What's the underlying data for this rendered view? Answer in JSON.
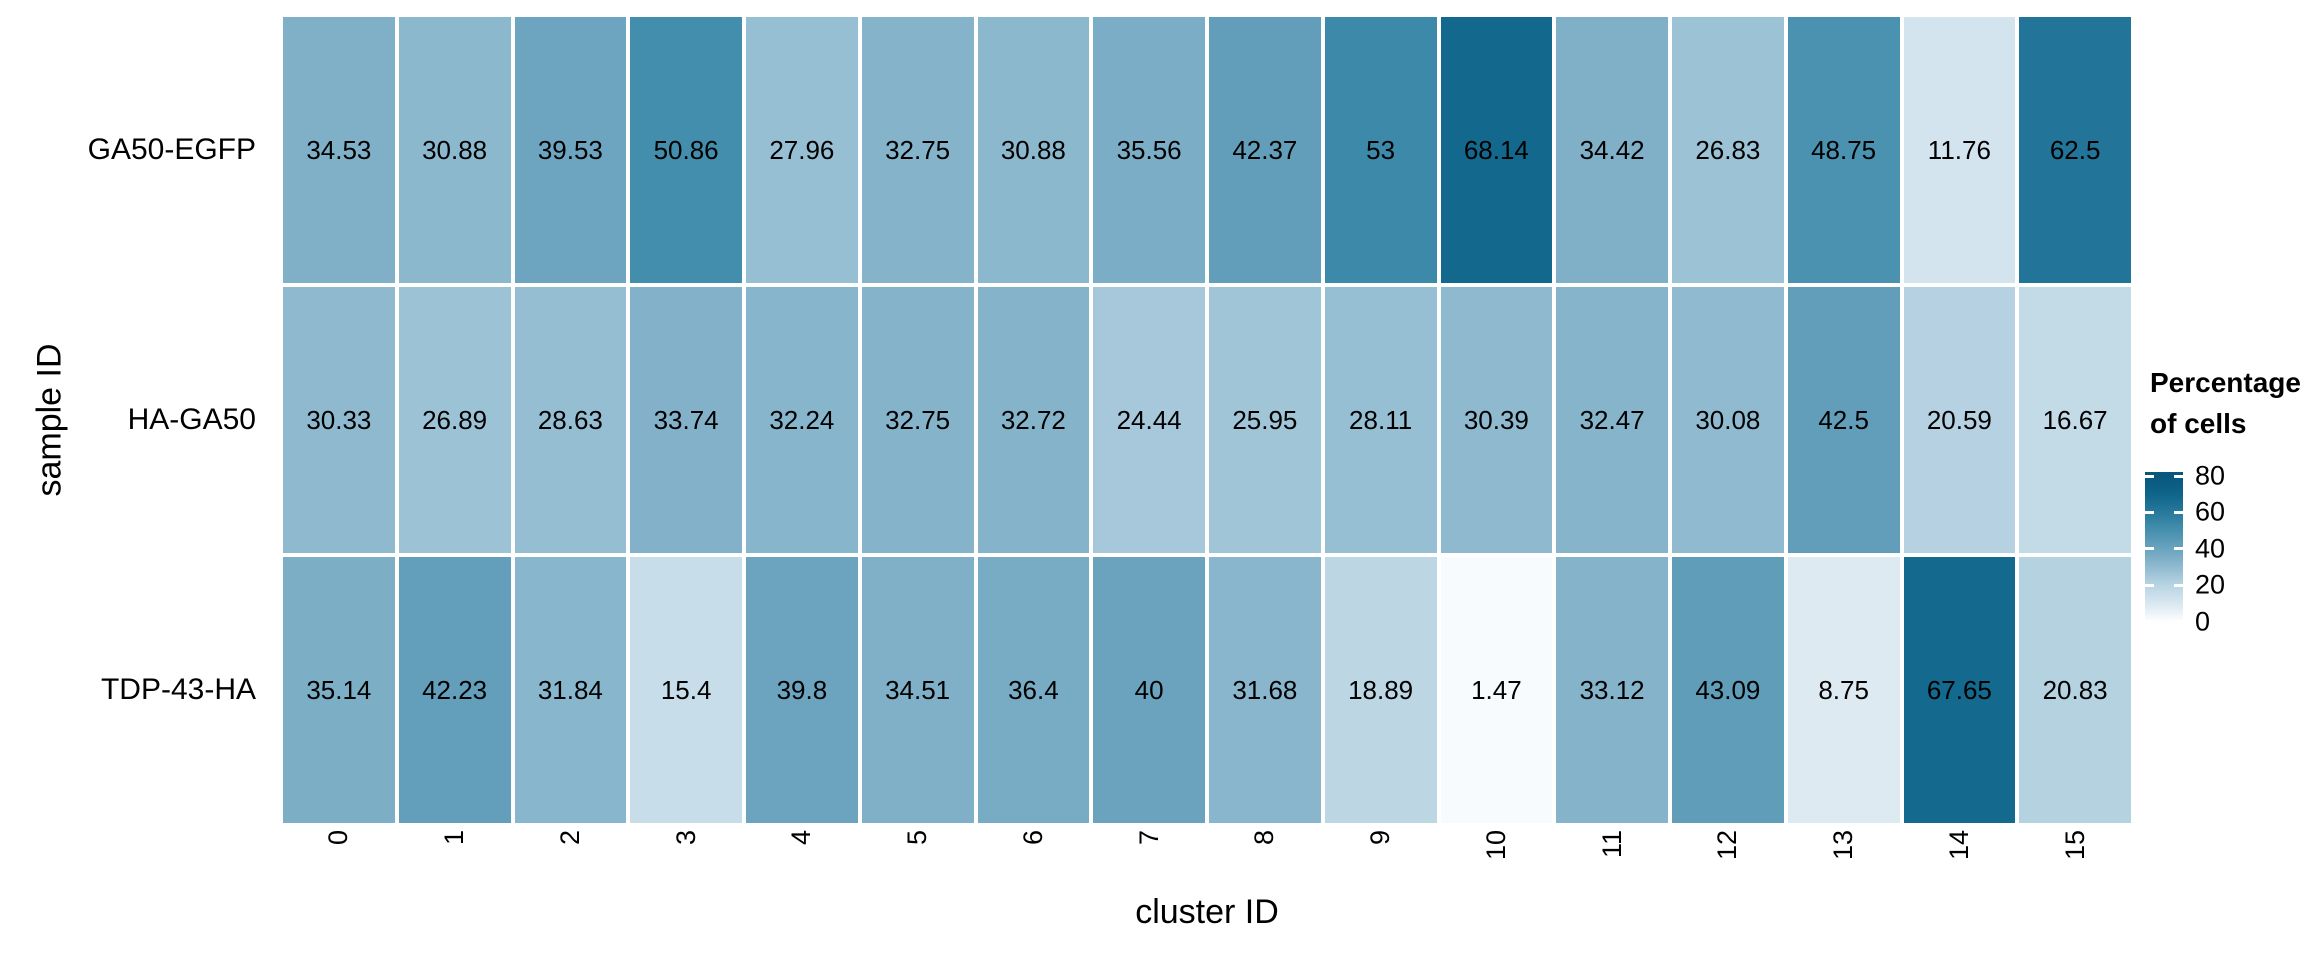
{
  "chart_data": {
    "type": "heatmap",
    "xlabel": "cluster ID",
    "ylabel": "sample ID",
    "categories": [
      "0",
      "1",
      "2",
      "3",
      "4",
      "5",
      "6",
      "7",
      "8",
      "9",
      "10",
      "11",
      "12",
      "13",
      "14",
      "15"
    ],
    "series": [
      {
        "name": "GA50-EGFP",
        "values": [
          34.53,
          30.88,
          39.53,
          50.86,
          27.96,
          32.75,
          30.88,
          35.56,
          42.37,
          53,
          68.14,
          34.42,
          26.83,
          48.75,
          11.76,
          62.5
        ]
      },
      {
        "name": "HA-GA50",
        "values": [
          30.33,
          26.89,
          28.63,
          33.74,
          32.24,
          32.75,
          32.72,
          24.44,
          25.95,
          28.11,
          30.39,
          32.47,
          30.08,
          42.5,
          20.59,
          16.67
        ]
      },
      {
        "name": "TDP-43-HA",
        "values": [
          35.14,
          42.23,
          31.84,
          15.4,
          39.8,
          34.51,
          36.4,
          40,
          31.68,
          18.89,
          1.47,
          33.12,
          43.09,
          8.75,
          67.65,
          20.83
        ]
      }
    ],
    "legend": {
      "title_line1": "Percentage",
      "title_line2": "of cells",
      "ticks": [
        80,
        60,
        40,
        20,
        0
      ],
      "position": "right"
    },
    "value_range": [
      0,
      80
    ],
    "grid": false,
    "colormap_stops": [
      [
        0,
        "#fdfeff"
      ],
      [
        10,
        "#d9e7f0"
      ],
      [
        20,
        "#b8d4e3"
      ],
      [
        30,
        "#8fbacf"
      ],
      [
        40,
        "#6ba3be"
      ],
      [
        50,
        "#4590ae"
      ],
      [
        60,
        "#28799c"
      ],
      [
        70,
        "#0e648a"
      ],
      [
        80,
        "#09577c"
      ]
    ]
  }
}
